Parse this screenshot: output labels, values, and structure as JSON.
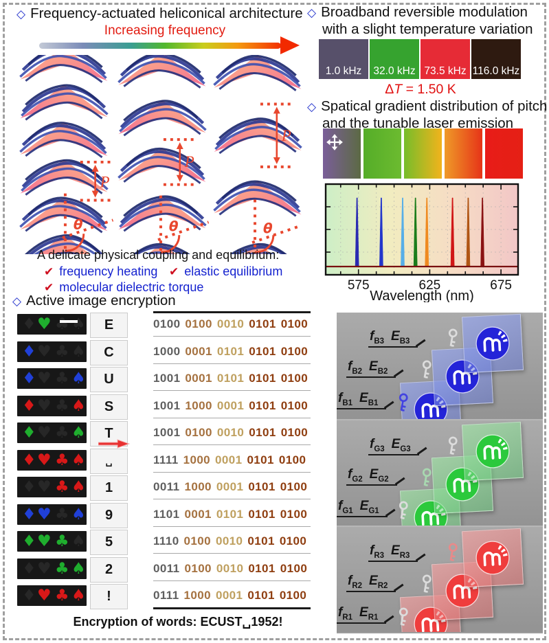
{
  "glyphs": {
    "diamond": "◇",
    "check": "✔"
  },
  "helix_panel": {
    "title": "Frequency-actuated heliconical architecture",
    "arrow_label": "Increasing frequency",
    "pitch_label": "P",
    "theta_label": "θ"
  },
  "coupling": {
    "heading": "A delicate physical coupling and equilibrium:",
    "items": [
      "frequency heating",
      "elastic equilibrium",
      "molecular dielectric torque"
    ]
  },
  "modulation_panel": {
    "title_line1": "Broadband reversible modulation",
    "title_line2": "with a slight temperature variation",
    "swatches": [
      {
        "label": "1.0 kHz",
        "color": "#57506a"
      },
      {
        "label": "32.0 kHz",
        "color": "#36a32f"
      },
      {
        "label": "73.5 kHz",
        "color": "#e62b36"
      },
      {
        "label": "116.0 kHz",
        "color": "#2e1a10"
      }
    ],
    "delta": "Δ",
    "t": "T",
    "rest": " = 1.50 K"
  },
  "gradient_panel": {
    "title_line1": "Spatical gradient distribution of pitch",
    "title_line2": "and the tunable laser emission",
    "strips": [
      [
        "#7a5e99",
        "#5c6a44"
      ],
      [
        "#55ad28",
        "#6cbb30"
      ],
      [
        "#76bd2a",
        "#f2b31c"
      ],
      [
        "#ef9a28",
        "#e63418"
      ],
      [
        "#e81c18",
        "#e52015"
      ]
    ]
  },
  "chart_data": {
    "type": "line",
    "title": "",
    "xlabel": "Wavelength (nm)",
    "ylabel": "",
    "xlim": [
      552,
      687
    ],
    "xticks": [
      575,
      625,
      675
    ],
    "grid": true,
    "legend": false,
    "bg_stops": [
      "#cdeec6",
      "#f1ecc0",
      "#f6dcc4",
      "#f2c7c7"
    ],
    "baseline_color": "#7a1010",
    "peaks": [
      {
        "wavelength_nm": 574,
        "color": "#2a2ab2"
      },
      {
        "wavelength_nm": 591,
        "color": "#2336cc"
      },
      {
        "wavelength_nm": 606,
        "color": "#56aee8"
      },
      {
        "wavelength_nm": 615,
        "color": "#1b7d1b"
      },
      {
        "wavelength_nm": 623,
        "color": "#ef8a20"
      },
      {
        "wavelength_nm": 641,
        "color": "#d01616"
      },
      {
        "wavelength_nm": 652,
        "color": "#b05514"
      },
      {
        "wavelength_nm": 662,
        "color": "#8a1212"
      }
    ]
  },
  "encryption": {
    "title": "Active image encryption",
    "caption": "Encryption of  words: ECUST␣1952!",
    "suit_glyphs": {
      "diamond": "♦",
      "heart": "♥",
      "club": "♣",
      "spade": "♠"
    },
    "colors": {
      "green": "#1fae2e",
      "blue": "#2040d8",
      "red": "#d81818",
      "dark": "#272727"
    },
    "bit_colors": [
      "#5f5f5f",
      "#a5713f",
      "#bfa05f",
      "#8f3e10",
      "#8f3e10"
    ],
    "rows": [
      {
        "char": "E",
        "suits": [
          "dark",
          "green",
          "dark",
          "dark"
        ],
        "bits": [
          "0100",
          "0100",
          "0010",
          "0101",
          "0100"
        ],
        "scalebar": true
      },
      {
        "char": "C",
        "suits": [
          "blue",
          "dark",
          "dark",
          "dark"
        ],
        "bits": [
          "1000",
          "0001",
          "0101",
          "0101",
          "0100"
        ]
      },
      {
        "char": "U",
        "suits": [
          "blue",
          "dark",
          "dark",
          "blue"
        ],
        "bits": [
          "1001",
          "0001",
          "0101",
          "0101",
          "0100"
        ]
      },
      {
        "char": "S",
        "suits": [
          "red",
          "dark",
          "dark",
          "red"
        ],
        "bits": [
          "1001",
          "1000",
          "0001",
          "0101",
          "0100"
        ]
      },
      {
        "char": "T",
        "suits": [
          "green",
          "dark",
          "dark",
          "green"
        ],
        "bits": [
          "1001",
          "0100",
          "0010",
          "0101",
          "0100"
        ]
      },
      {
        "char": "␣",
        "suits": [
          "red",
          "red",
          "red",
          "red"
        ],
        "bits": [
          "1111",
          "1000",
          "0001",
          "0101",
          "0100"
        ]
      },
      {
        "char": "1",
        "suits": [
          "dark",
          "dark",
          "red",
          "red"
        ],
        "bits": [
          "0011",
          "1000",
          "0001",
          "0101",
          "0100"
        ]
      },
      {
        "char": "9",
        "suits": [
          "blue",
          "blue",
          "dark",
          "blue"
        ],
        "bits": [
          "1101",
          "0001",
          "0101",
          "0101",
          "0100"
        ]
      },
      {
        "char": "5",
        "suits": [
          "green",
          "green",
          "green",
          "dark"
        ],
        "bits": [
          "1110",
          "0100",
          "0010",
          "0101",
          "0100"
        ]
      },
      {
        "char": "2",
        "suits": [
          "dark",
          "dark",
          "green",
          "green"
        ],
        "bits": [
          "0011",
          "0100",
          "0010",
          "0101",
          "0100"
        ]
      },
      {
        "char": "!",
        "suits": [
          "dark",
          "red",
          "red",
          "red"
        ],
        "bits": [
          "0111",
          "1000",
          "0001",
          "0101",
          "0100"
        ]
      }
    ]
  },
  "keys_panel": {
    "groups": [
      {
        "name": "blue",
        "accent": "#2424d8",
        "tintA": "rgba(150,165,235,.72)",
        "tintB": "rgba(95,115,215,.5)",
        "items": [
          {
            "f": "f",
            "f_sub": "B3",
            "e": "E",
            "e_sub": "B3",
            "key_color": "#dcdcdc"
          },
          {
            "f": "f",
            "f_sub": "B2",
            "e": "E",
            "e_sub": "B2",
            "key_color": "#dcdcdc"
          },
          {
            "f": "f",
            "f_sub": "B1",
            "e": "E",
            "e_sub": "B1",
            "key_color": "#4343e0"
          }
        ]
      },
      {
        "name": "green",
        "accent": "#2bc93c",
        "tintA": "rgba(160,225,165,.7)",
        "tintB": "rgba(95,200,115,.5)",
        "items": [
          {
            "f": "f",
            "f_sub": "G3",
            "e": "E",
            "e_sub": "G3",
            "key_color": "#dcdcdc"
          },
          {
            "f": "f",
            "f_sub": "G2",
            "e": "E",
            "e_sub": "G2",
            "key_color": "#a8d8b0"
          },
          {
            "f": "f",
            "f_sub": "G1",
            "e": "E",
            "e_sub": "G1",
            "key_color": "#dcdcdc"
          }
        ]
      },
      {
        "name": "red",
        "accent": "#ef3d3d",
        "tintA": "rgba(240,160,160,.7)",
        "tintB": "rgba(225,100,100,.5)",
        "items": [
          {
            "f": "f",
            "f_sub": "R3",
            "e": "E",
            "e_sub": "R3",
            "key_color": "#e88a8a"
          },
          {
            "f": "f",
            "f_sub": "R2",
            "e": "E",
            "e_sub": "R2",
            "key_color": "#dcdcdc"
          },
          {
            "f": "f",
            "f_sub": "R1",
            "e": "E",
            "e_sub": "R1",
            "key_color": "#dcdcdc"
          }
        ]
      }
    ]
  }
}
